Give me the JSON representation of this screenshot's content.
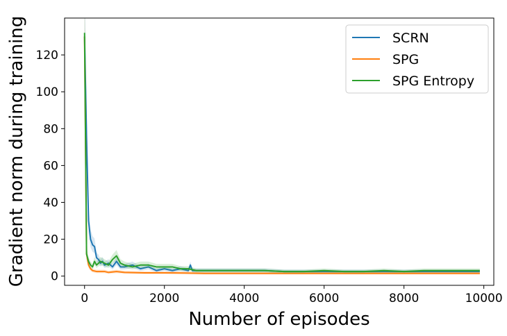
{
  "chart_data": {
    "type": "line",
    "title": "",
    "xlabel": "Number of episodes",
    "ylabel": "Gradient norm during training",
    "xlim": [
      -500,
      10250
    ],
    "ylim": [
      -5,
      140
    ],
    "xticks": [
      0,
      2000,
      4000,
      6000,
      8000,
      10000
    ],
    "yticks": [
      0,
      20,
      40,
      60,
      80,
      100,
      120
    ],
    "legend_position": "top-right",
    "series": [
      {
        "name": "SCRN",
        "color": "#1f77b4",
        "x": [
          0,
          50,
          100,
          150,
          200,
          250,
          300,
          350,
          400,
          450,
          500,
          600,
          700,
          800,
          900,
          1000,
          1200,
          1400,
          1600,
          1800,
          2000,
          2200,
          2400,
          2600,
          2650,
          2700,
          2800,
          3000,
          3500,
          4000,
          4500,
          5000,
          5500,
          6000,
          6500,
          7000,
          7500,
          8000,
          8500,
          9000,
          9500,
          9900
        ],
        "y": [
          130,
          75,
          30,
          20,
          17,
          16,
          10,
          9,
          7,
          8,
          6,
          7,
          5,
          8,
          5,
          5,
          6,
          4,
          5,
          3,
          4,
          3,
          4,
          3,
          6,
          3,
          3,
          3,
          3,
          3,
          3,
          2.5,
          2.5,
          2.5,
          2.5,
          2.5,
          2.5,
          2.5,
          2.5,
          2.5,
          2.5,
          2.5
        ]
      },
      {
        "name": "SPG",
        "color": "#ff7f0e",
        "x": [
          0,
          50,
          100,
          150,
          200,
          300,
          400,
          500,
          600,
          800,
          1000,
          1500,
          2000,
          2500,
          3000,
          4000,
          5000,
          6000,
          7000,
          8000,
          9000,
          9900
        ],
        "y": [
          130,
          12,
          6,
          4,
          3,
          2.5,
          2.5,
          2.5,
          2,
          2.5,
          2,
          1.8,
          1.8,
          1.7,
          1.5,
          1.5,
          1.5,
          1.5,
          1.5,
          1.5,
          1.5,
          1.5
        ]
      },
      {
        "name": "SPG Entropy",
        "color": "#2ca02c",
        "x": [
          0,
          50,
          100,
          150,
          200,
          250,
          300,
          400,
          500,
          600,
          700,
          800,
          900,
          1000,
          1200,
          1400,
          1600,
          1800,
          2000,
          2200,
          2400,
          2600,
          2800,
          3000,
          3500,
          4000,
          4500,
          5000,
          5500,
          6000,
          6500,
          7000,
          7500,
          8000,
          8500,
          9000,
          9500,
          9900
        ],
        "y": [
          132,
          12,
          8,
          6,
          5,
          8,
          6,
          8,
          7,
          6,
          9,
          11,
          7,
          6,
          5,
          6,
          6,
          5,
          5,
          5,
          4,
          4,
          3,
          3,
          3,
          3,
          3,
          2.5,
          2.5,
          3,
          2.5,
          2.5,
          3,
          2.5,
          3,
          3,
          3,
          3
        ]
      }
    ]
  }
}
